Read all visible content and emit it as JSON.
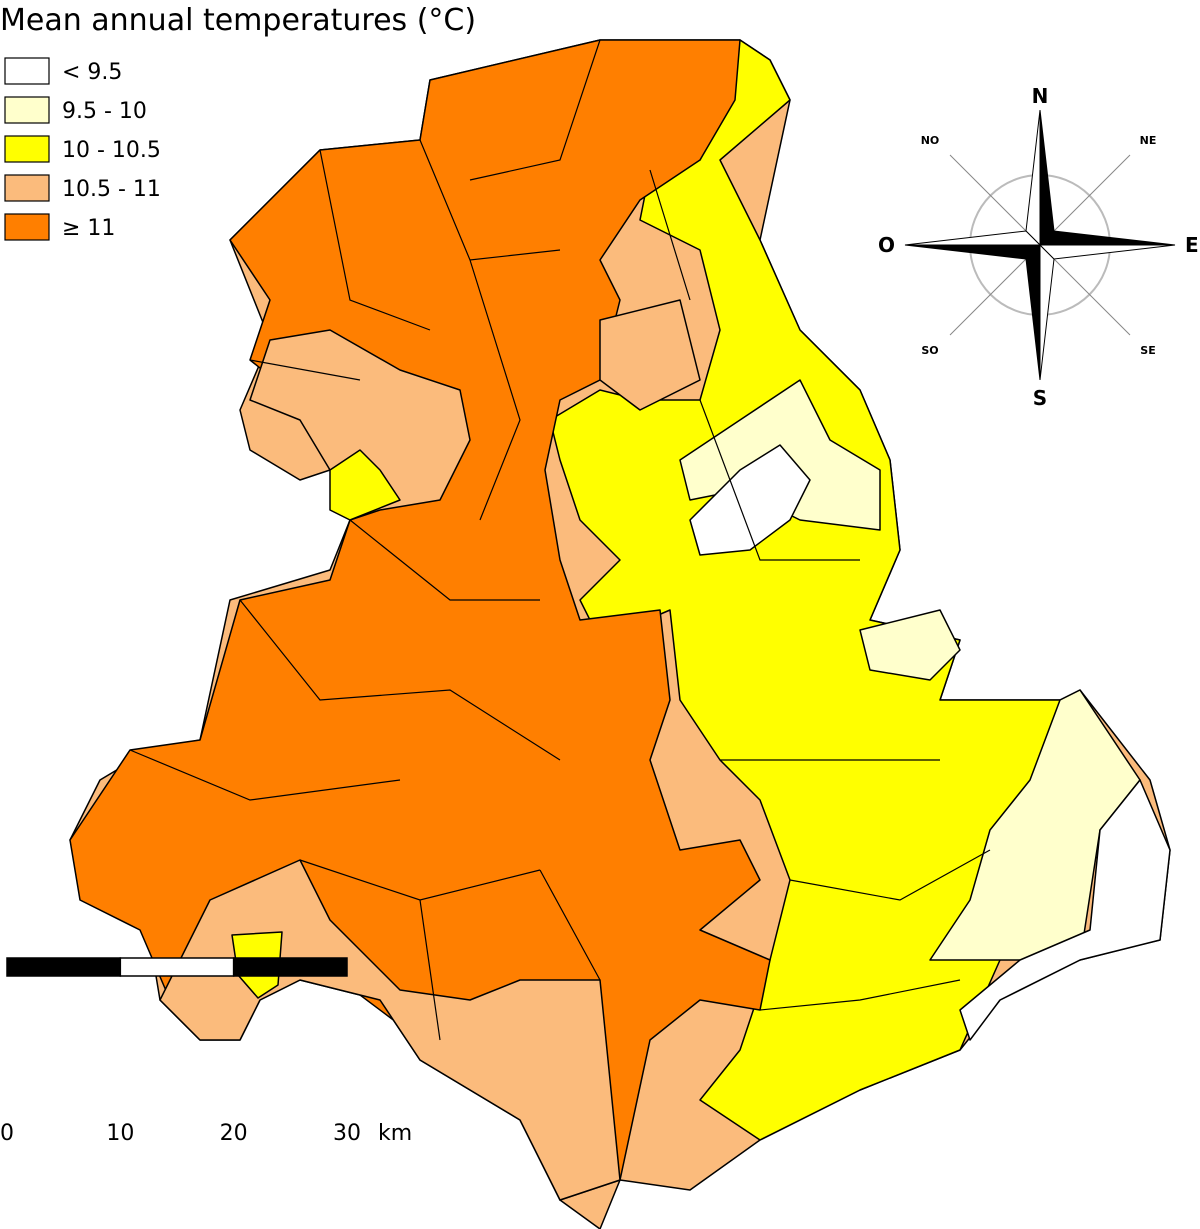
{
  "title": "Mean annual temperatures (°C)",
  "legend": [
    {
      "label": "< 9.5",
      "color": "#ffffff"
    },
    {
      "label": "9.5 - 10",
      "color": "#ffffcc"
    },
    {
      "label": "10 - 10.5",
      "color": "#ffff00"
    },
    {
      "label": "10.5 - 11",
      "color": "#fbbb7c"
    },
    {
      "label": "≥ 11",
      "color": "#ff7f00"
    }
  ],
  "compass": {
    "N": "N",
    "NE": "NE",
    "E": "E",
    "SE": "SE",
    "S": "S",
    "SO": "SO",
    "O": "O",
    "NO": "NO"
  },
  "scale": {
    "ticks": [
      0,
      10,
      20,
      30
    ],
    "unit": "km"
  }
}
